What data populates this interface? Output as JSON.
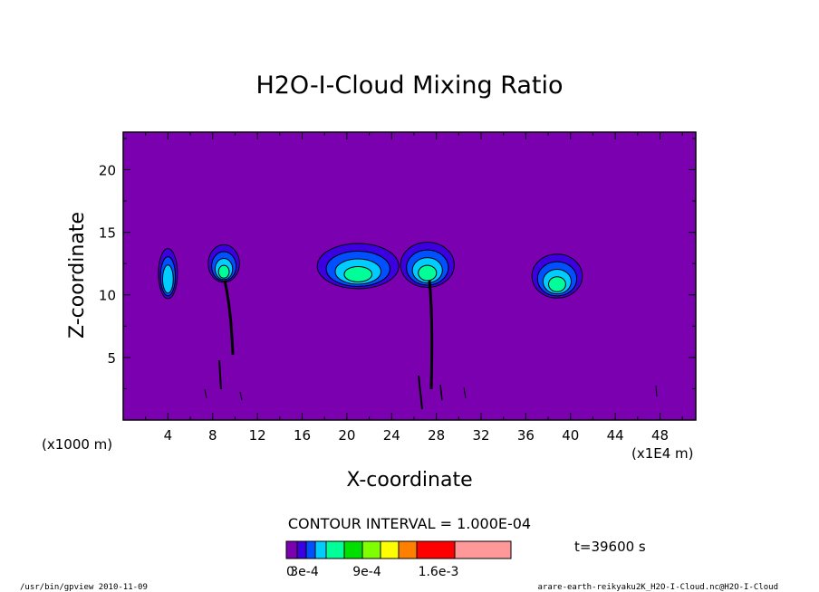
{
  "chart_data": {
    "type": "heatmap",
    "title": "H2O-I-Cloud Mixing Ratio",
    "xlabel": "X-coordinate",
    "ylabel": "Z-coordinate",
    "x_unit_label": "(x1E4 m)",
    "y_unit_label": "(x1000 m)",
    "xlim": [
      0,
      51.2
    ],
    "ylim": [
      0,
      23
    ],
    "x_ticks": [
      4,
      8,
      12,
      16,
      20,
      24,
      28,
      32,
      36,
      40,
      44,
      48
    ],
    "y_ticks": [
      5,
      10,
      15,
      20
    ],
    "background_level_color": "#7a00b0",
    "contour_interval_text": "CONTOUR INTERVAL = 1.000E-04",
    "time_text": "t=39600 s",
    "colorbar": {
      "colors": [
        "#7a00b0",
        "#3c00e0",
        "#0050ff",
        "#00ccff",
        "#00ff99",
        "#00e000",
        "#7fff00",
        "#ffff00",
        "#ff8000",
        "#ff0000",
        "#ff9999"
      ],
      "labels": [
        "0",
        "3e-4",
        "9e-4",
        "1.6e-3"
      ]
    },
    "clouds": [
      {
        "x": 4.0,
        "z": 11.7,
        "w": 1.7,
        "h": 4.0,
        "levels": 3
      },
      {
        "x": 9.0,
        "z": 12.5,
        "w": 2.8,
        "h": 3.0,
        "levels": 4
      },
      {
        "x": 21.0,
        "z": 12.3,
        "w": 7.3,
        "h": 3.6,
        "levels": 4
      },
      {
        "x": 27.2,
        "z": 12.4,
        "w": 4.8,
        "h": 3.6,
        "levels": 4
      },
      {
        "x": 38.8,
        "z": 11.5,
        "w": 4.5,
        "h": 3.5,
        "levels": 4
      }
    ]
  },
  "footer": {
    "left": "/usr/bin/gpview   2010-11-09",
    "right": "arare-earth-reikyaku2K_H2O-I-Cloud.nc@H2O-I-Cloud"
  }
}
